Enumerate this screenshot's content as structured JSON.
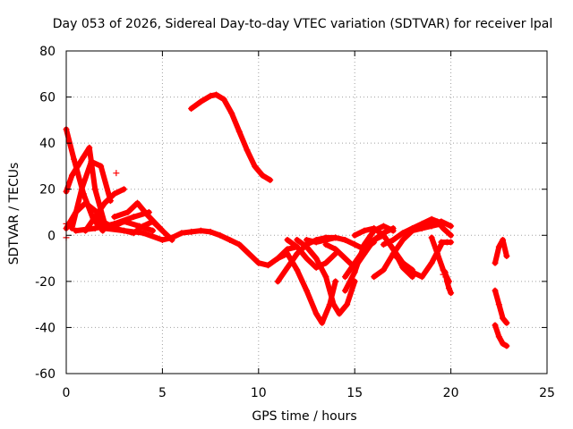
{
  "chart_data": {
    "type": "scatter",
    "title": "Day 053 of 2026, Sidereal Day-to-day VTEC variation (SDTVAR) for receiver lpal",
    "xlabel": "GPS time / hours",
    "ylabel": "SDTVAR / TECUs",
    "xlim": [
      0,
      25
    ],
    "ylim": [
      -60,
      80
    ],
    "xticks": [
      0,
      5,
      10,
      15,
      20,
      25
    ],
    "yticks": [
      -60,
      -40,
      -20,
      0,
      20,
      40,
      60,
      80
    ],
    "grid": true,
    "legend": "none",
    "marker": "+",
    "color": "#ff0000",
    "series": [
      {
        "name": "arc-1",
        "x": [
          0,
          0.4,
          0.9,
          1.4,
          1.9
        ],
        "y": [
          46,
          33,
          18,
          7,
          2
        ]
      },
      {
        "name": "arc-2",
        "x": [
          0,
          0.3,
          0.6,
          0.9,
          1.2,
          1.5,
          2
        ],
        "y": [
          19,
          26,
          30,
          34,
          38,
          20,
          5
        ]
      },
      {
        "name": "arc-3",
        "x": [
          0,
          0.5,
          1.0,
          1.6,
          2.2
        ],
        "y": [
          3,
          10,
          14,
          10,
          3
        ]
      },
      {
        "name": "arc-4",
        "x": [
          0.3,
          0.8,
          1.3,
          1.8,
          2.3
        ],
        "y": [
          3,
          20,
          32,
          30,
          15
        ]
      },
      {
        "name": "arc-5",
        "x": [
          1.0,
          1.5,
          2.0,
          2.5,
          3.0
        ],
        "y": [
          2,
          8,
          14,
          18,
          20
        ]
      },
      {
        "name": "arc-6",
        "x": [
          0.5,
          1.5,
          2.5,
          3.5,
          4.3
        ],
        "y": [
          2,
          3,
          5,
          8,
          10
        ]
      },
      {
        "name": "arc-7",
        "x": [
          1.5,
          2.5,
          3.5,
          4.0,
          4.5,
          5.0
        ],
        "y": [
          8,
          3,
          1,
          4,
          6,
          2
        ]
      },
      {
        "name": "arc-8",
        "x": [
          2.5,
          3.2,
          3.7,
          4.2,
          5.0,
          5.5
        ],
        "y": [
          8,
          10,
          14,
          9,
          2,
          -2
        ]
      },
      {
        "name": "arc-9",
        "x": [
          1.8,
          2.5,
          3.0,
          3.8,
          4.5
        ],
        "y": [
          5,
          4,
          6,
          4,
          2
        ]
      },
      {
        "name": "main-trend",
        "x": [
          2,
          3,
          4,
          5,
          5.5,
          6,
          6.5,
          7,
          7.5,
          8,
          8.5,
          9,
          9.5,
          10,
          10.5,
          11,
          11.5,
          12
        ],
        "y": [
          3,
          2,
          1,
          -2,
          -1,
          1,
          1.5,
          2,
          1.5,
          0,
          -2,
          -4,
          -8,
          -12,
          -13,
          -10,
          -6,
          -5
        ]
      },
      {
        "name": "high-arc",
        "x": [
          6.5,
          7.0,
          7.5,
          7.8,
          8.2,
          8.6,
          9.0,
          9.4,
          9.8,
          10.2,
          10.6
        ],
        "y": [
          55,
          58,
          60.5,
          61,
          59,
          53,
          45,
          37,
          30,
          26,
          24
        ]
      },
      {
        "name": "arc-10",
        "x": [
          11,
          11.5,
          12,
          12.5,
          13,
          13.5,
          14
        ],
        "y": [
          -20,
          -14,
          -8,
          -4,
          -2,
          -1,
          -1
        ]
      },
      {
        "name": "arc-11",
        "x": [
          11,
          11.5,
          12,
          12.5,
          13.0,
          13.3,
          13.7,
          14.0
        ],
        "y": [
          -10,
          -8,
          -15,
          -24,
          -34,
          -38,
          -30,
          -20
        ]
      },
      {
        "name": "arc-12",
        "x": [
          11.5,
          12,
          12.5,
          13,
          13.5,
          14
        ],
        "y": [
          -2,
          -5,
          -10,
          -14,
          -12,
          -8
        ]
      },
      {
        "name": "arc-13",
        "x": [
          12,
          12.5,
          13,
          13.5,
          13.9,
          14.2,
          14.6,
          15.0
        ],
        "y": [
          -2,
          -5,
          -10,
          -18,
          -30,
          -34,
          -30,
          -20
        ]
      },
      {
        "name": "arc-14",
        "x": [
          12.5,
          13,
          13.5,
          14,
          14.5,
          15,
          15.5,
          16
        ],
        "y": [
          -2,
          -3,
          -2,
          -1,
          -2,
          -4,
          -6,
          -3
        ]
      },
      {
        "name": "arc-15",
        "x": [
          13.5,
          14,
          14.5,
          15,
          15.5,
          16,
          16.5,
          17
        ],
        "y": [
          -4,
          -6,
          -10,
          -14,
          -8,
          -2,
          1,
          3
        ]
      },
      {
        "name": "arc-16",
        "x": [
          14.5,
          15,
          15.5,
          16,
          16.5,
          17
        ],
        "y": [
          -24,
          -16,
          -4,
          2,
          4,
          2
        ]
      },
      {
        "name": "arc-17",
        "x": [
          14.5,
          15,
          15.5,
          16,
          16.5,
          17,
          17.5,
          18
        ],
        "y": [
          -18,
          -12,
          -6,
          -2,
          0,
          -6,
          -14,
          -18
        ]
      },
      {
        "name": "arc-18",
        "x": [
          15,
          15.5,
          16,
          16.5,
          17,
          17.5,
          18
        ],
        "y": [
          0,
          2,
          3,
          0,
          -6,
          -12,
          -15
        ]
      },
      {
        "name": "arc-19",
        "x": [
          16,
          16.5,
          17,
          17.5,
          18,
          18.5,
          19,
          19.5
        ],
        "y": [
          -18,
          -15,
          -8,
          -2,
          2,
          3,
          4,
          5
        ]
      },
      {
        "name": "arc-20",
        "x": [
          16.5,
          17,
          17.5,
          18,
          18.5,
          19,
          19.5,
          20
        ],
        "y": [
          -4,
          -2,
          1,
          3,
          4,
          5,
          6,
          4
        ]
      },
      {
        "name": "arc-21",
        "x": [
          17,
          17.5,
          18,
          18.5,
          19,
          19.5
        ],
        "y": [
          -8,
          -12,
          -16,
          -18,
          -12,
          -4
        ]
      },
      {
        "name": "arc-22",
        "x": [
          18,
          18.5,
          19,
          19.3,
          19.6,
          20
        ],
        "y": [
          3,
          5,
          7,
          6,
          3,
          0
        ]
      },
      {
        "name": "arc-23",
        "x": [
          19,
          19.3,
          19.6,
          19.9
        ],
        "y": [
          -1,
          -8,
          -15,
          -20
        ]
      },
      {
        "name": "arc-24",
        "x": [
          19.7,
          19.8,
          19.9,
          20.0
        ],
        "y": [
          -16,
          -20,
          -23,
          -25
        ]
      },
      {
        "name": "arc-25",
        "x": [
          19.5,
          19.8,
          20.0
        ],
        "y": [
          -3,
          -3,
          -3
        ]
      },
      {
        "name": "arc-26",
        "x": [
          22.3,
          22.5,
          22.7,
          22.9
        ],
        "y": [
          -24,
          -30,
          -36,
          -38
        ]
      },
      {
        "name": "arc-27",
        "x": [
          22.3,
          22.5,
          22.7,
          22.9
        ],
        "y": [
          -39,
          -44,
          -47,
          -48
        ]
      },
      {
        "name": "arc-28",
        "x": [
          22.3,
          22.5,
          22.7,
          22.9
        ],
        "y": [
          -12,
          -5,
          -2,
          -9
        ]
      }
    ],
    "markers": [
      {
        "name": "outlier-1",
        "x": [
          2.6
        ],
        "y": [
          27
        ]
      },
      {
        "name": "outlier-2",
        "x": [
          0
        ],
        "y": [
          -1
        ]
      },
      {
        "name": "outlier-3",
        "x": [
          0
        ],
        "y": [
          5
        ]
      },
      {
        "name": "outlier-4",
        "x": [
          19.6
        ],
        "y": [
          -17
        ]
      }
    ]
  }
}
